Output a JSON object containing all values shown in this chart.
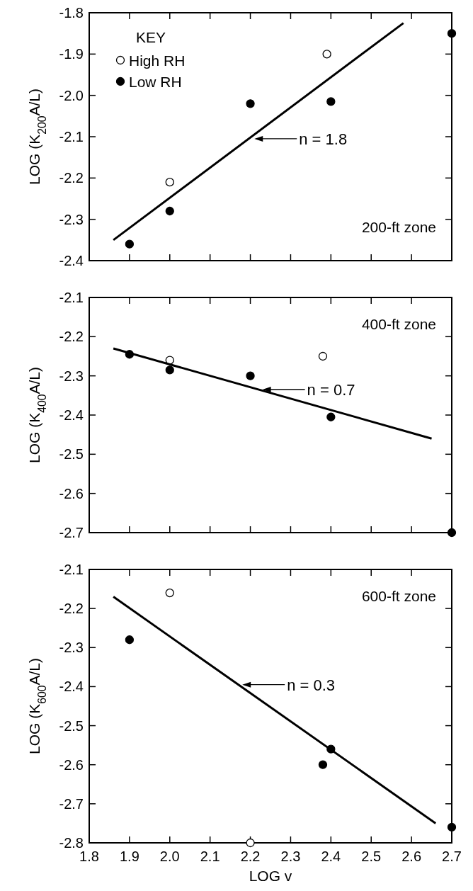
{
  "chart_data": [
    {
      "type": "scatter",
      "ylabel": "LOG (K$_{200}$A/L)",
      "legend_title": "KEY",
      "legend": "top left",
      "marker": "circle",
      "tick_labels": "y",
      "xlim": [
        1.8,
        2.7
      ],
      "xticks": [
        1.8,
        1.9,
        2,
        2.1,
        2.2,
        2.3,
        2.4,
        2.5,
        2.6,
        2.7
      ],
      "ylim": [
        -2.4,
        -1.8
      ],
      "yticks": [
        -2.4,
        -2.3,
        -2.2,
        -2.1,
        {
          "value": -2.0,
          "label": "-2.0"
        },
        -1.9,
        -1.8
      ],
      "annotations": [
        {
          "text": "n = 1.8",
          "x": 2.21,
          "y": -2.105
        },
        "200-ft zone"
      ],
      "series": [
        {
          "name": "High RH",
          "color": "#ffffff",
          "x": [
            2.0,
            2.39
          ],
          "values": [
            -2.21,
            -1.9
          ]
        },
        {
          "name": "Low RH",
          "color": "#000000",
          "x": [
            1.9,
            2.0,
            2.2,
            2.4,
            2.7
          ],
          "values": [
            -2.36,
            -2.28,
            -2.02,
            -2.015,
            -1.85
          ]
        },
        {
          "type": "line",
          "color": "#000000",
          "marker": "none",
          "x": [
            1.86,
            2.58
          ],
          "values": [
            -2.35,
            -1.825
          ]
        }
      ]
    },
    {
      "type": "scatter",
      "ylabel": "LOG (K$_{400}$A/L)",
      "marker": "circle",
      "tick_labels": "y",
      "xlim": [
        1.8,
        2.7
      ],
      "xticks": [
        1.8,
        1.9,
        2,
        2.1,
        2.2,
        2.3,
        2.4,
        2.5,
        2.6,
        2.7
      ],
      "ylim": [
        -2.7,
        -2.1
      ],
      "yticks": [
        -2.7,
        -2.6,
        -2.5,
        -2.4,
        -2.3,
        -2.2,
        -2.1
      ],
      "annotations": [
        {
          "text": "n = 0.7",
          "x": 2.23,
          "y": -2.335
        },
        "400-ft zone"
      ],
      "series": [
        {
          "color": "#ffffff",
          "x": [
            2.0,
            2.38
          ],
          "values": [
            -2.26,
            -2.25
          ]
        },
        {
          "color": "#000000",
          "x": [
            1.9,
            2.0,
            2.2,
            2.4,
            2.7
          ],
          "values": [
            -2.245,
            -2.285,
            -2.3,
            -2.405,
            -2.7
          ]
        },
        {
          "type": "line",
          "color": "#000000",
          "marker": "none",
          "x": [
            1.86,
            2.65
          ],
          "values": [
            -2.23,
            -2.46
          ]
        }
      ]
    },
    {
      "type": "scatter",
      "ylabel": "LOG (K$_{600}$A/L)",
      "xlabel": "LOG v",
      "marker": "circle",
      "xlim": [
        1.8,
        2.7
      ],
      "xticks": [
        1.8,
        1.9,
        {
          "value": 2.0,
          "label": "2.0"
        },
        2.1,
        2.2,
        2.3,
        2.4,
        2.5,
        2.6,
        2.7
      ],
      "ylim": [
        -2.8,
        -2.1
      ],
      "yticks": [
        -2.8,
        -2.7,
        -2.6,
        -2.5,
        -2.4,
        -2.3,
        -2.2,
        -2.1
      ],
      "annotations": [
        {
          "text": "n = 0.3",
          "x": 2.18,
          "y": -2.395
        },
        "600-ft zone"
      ],
      "series": [
        {
          "color": "#ffffff",
          "x": [
            2.0,
            2.2
          ],
          "values": [
            -2.16,
            -2.8
          ]
        },
        {
          "color": "#000000",
          "x": [
            1.9,
            2.38,
            2.4,
            2.7
          ],
          "values": [
            -2.28,
            -2.6,
            -2.56,
            -2.76
          ]
        },
        {
          "type": "line",
          "color": "#000000",
          "marker": "none",
          "x": [
            1.86,
            2.66
          ],
          "values": [
            -2.17,
            -2.75
          ]
        }
      ]
    }
  ]
}
